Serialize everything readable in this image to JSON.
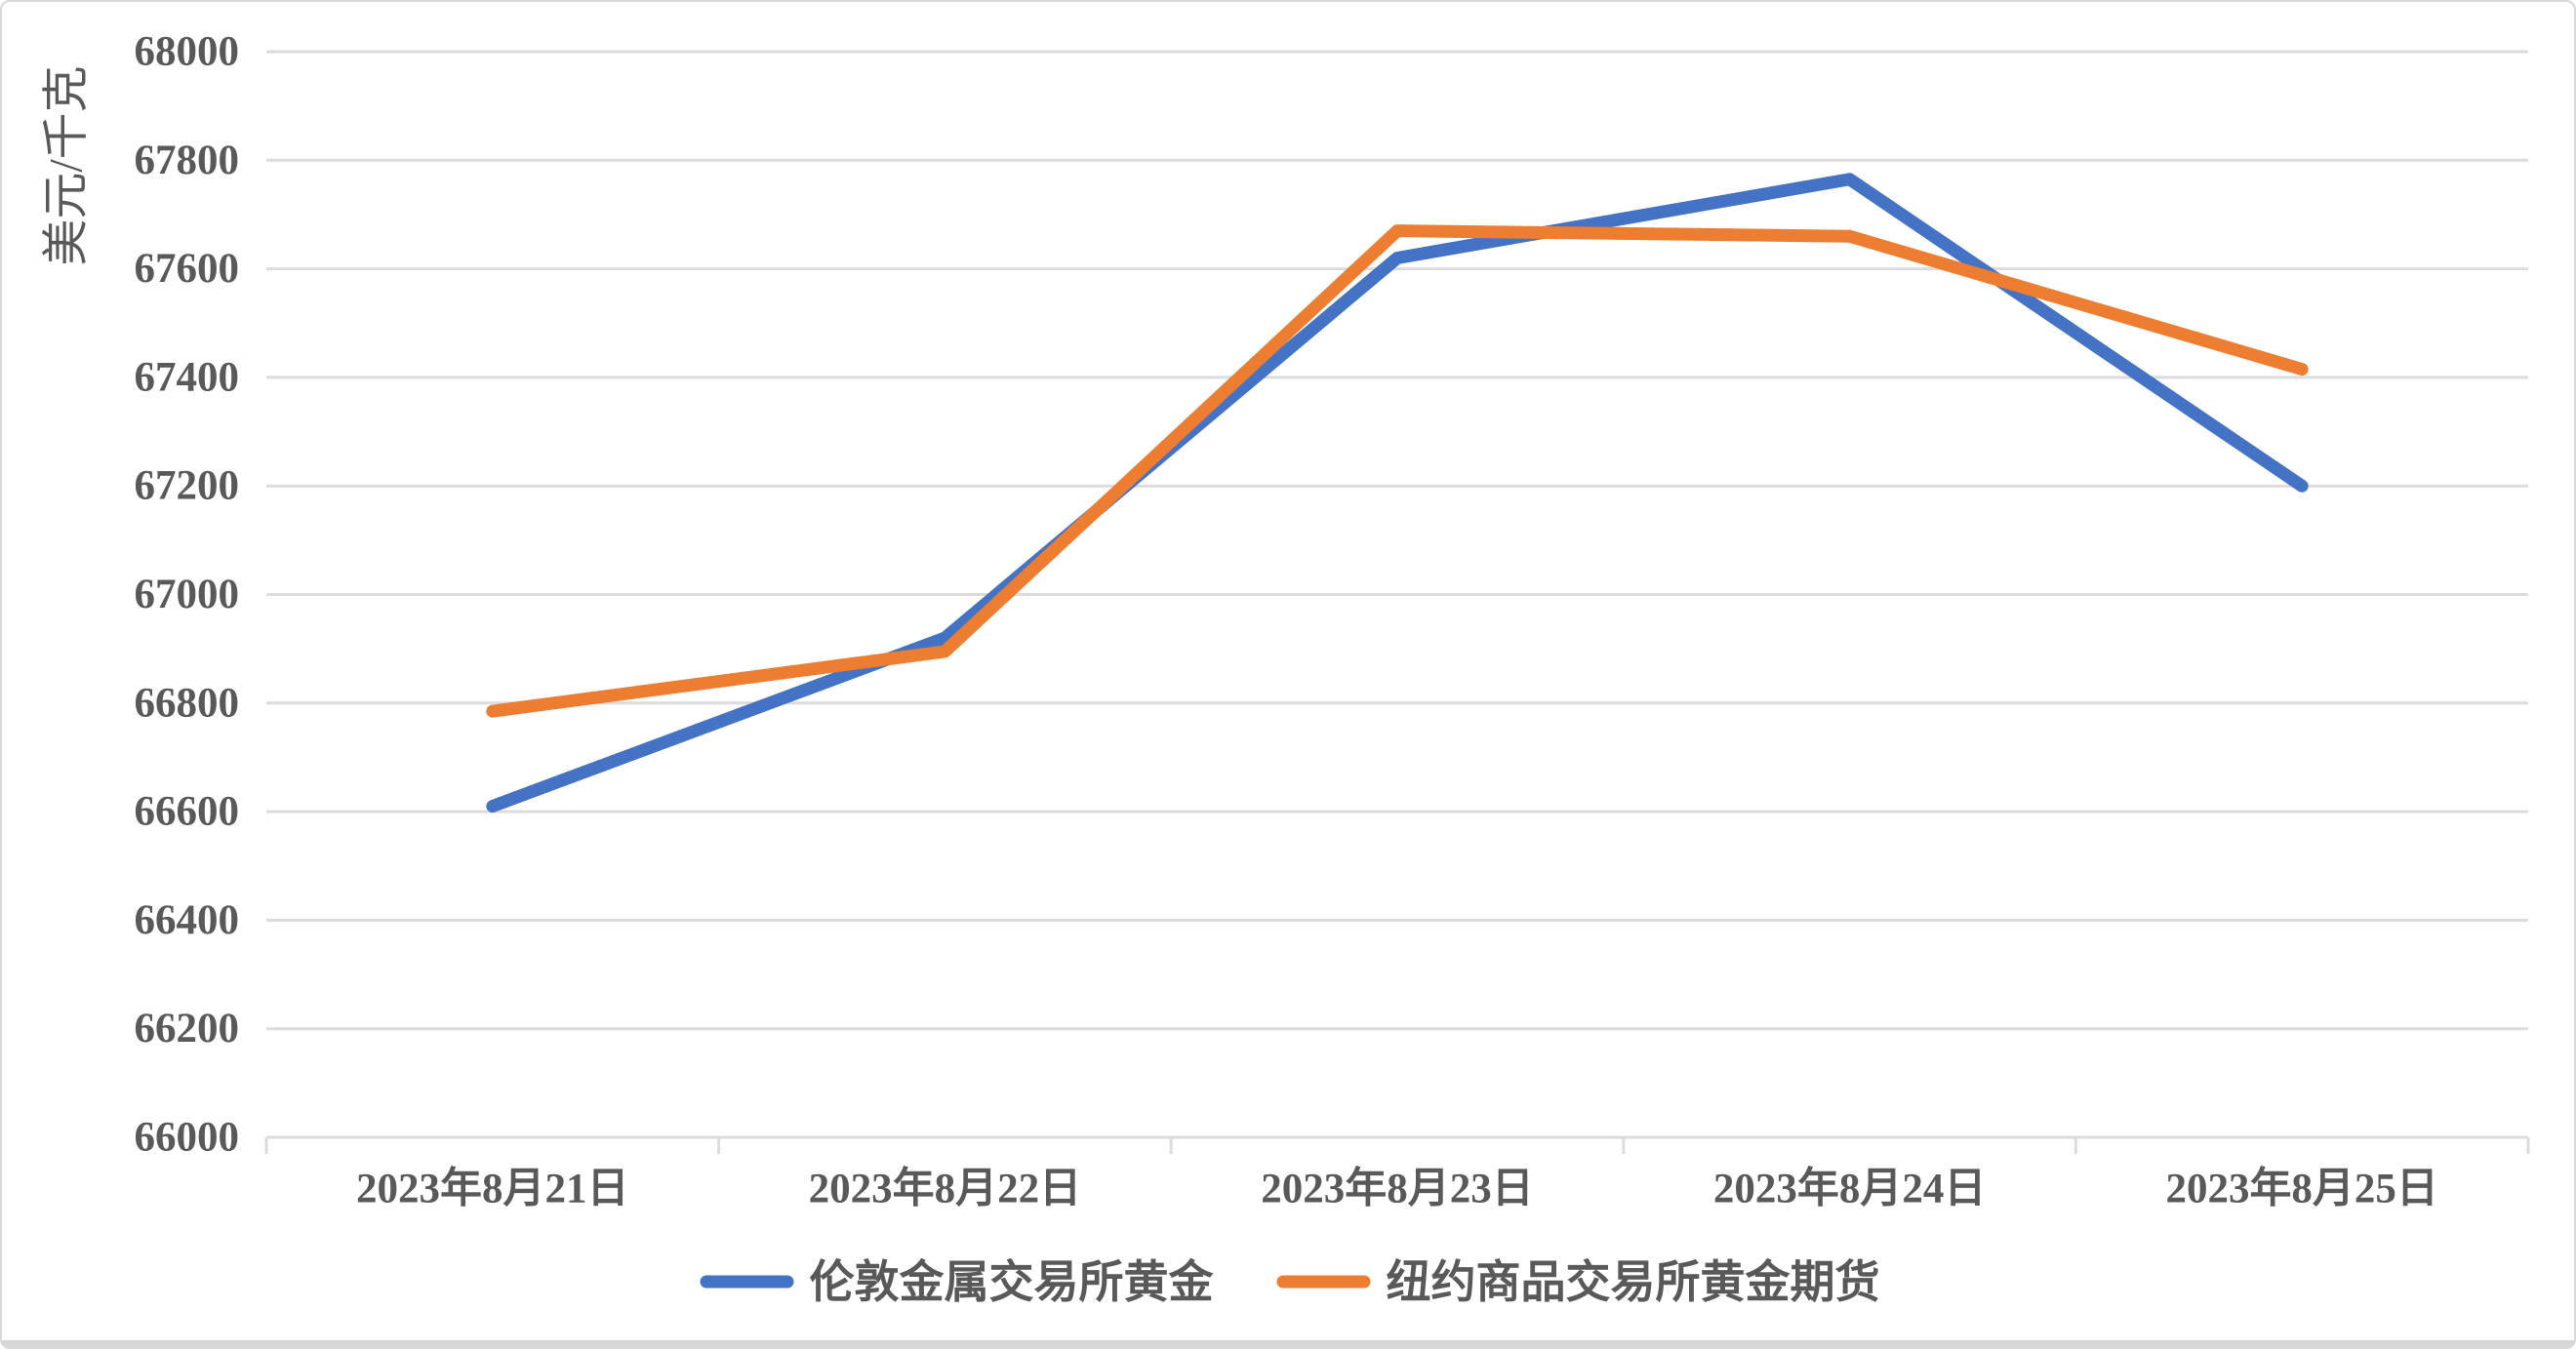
{
  "window": {
    "background_color": "#ffffff",
    "border_color": "#d9d9d9"
  },
  "chart_data": {
    "type": "line",
    "title": "",
    "xlabel": "",
    "ylabel": "美元/千克",
    "categories": [
      "2023年8月21日",
      "2023年8月22日",
      "2023年8月23日",
      "2023年8月24日",
      "2023年8月25日"
    ],
    "series": [
      {
        "name": "伦敦金属交易所黄金",
        "color": "#4472C4",
        "values": [
          66610,
          66920,
          67620,
          67765,
          67200
        ]
      },
      {
        "name": "纽约商品交易所黄金期货",
        "color": "#ED7D31",
        "values": [
          66785,
          66895,
          67670,
          67660,
          67415
        ]
      }
    ],
    "ylim": [
      66000,
      68000
    ],
    "ytick_step": 200,
    "ytick_labels": [
      "66000",
      "66200",
      "66400",
      "66600",
      "66800",
      "67000",
      "67200",
      "67400",
      "67600",
      "67800",
      "68000"
    ],
    "grid": true,
    "gridline_color": "#dcdcdc",
    "axis_text_color": "#595959",
    "legend_position": "bottom"
  }
}
